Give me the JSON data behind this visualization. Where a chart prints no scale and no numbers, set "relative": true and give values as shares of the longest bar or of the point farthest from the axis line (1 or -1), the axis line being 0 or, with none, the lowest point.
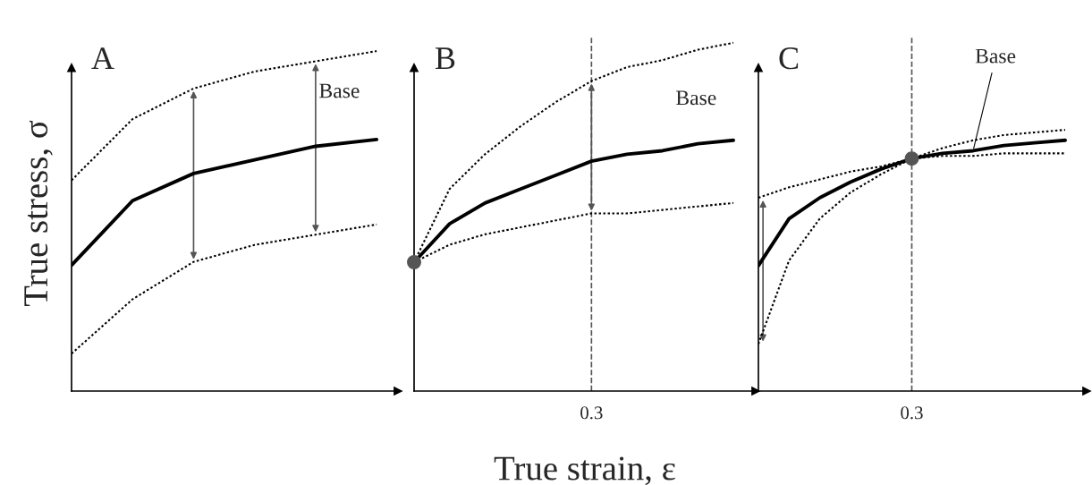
{
  "chart_data": [
    {
      "type": "line",
      "title": "A",
      "ylabel": "True stress, σ",
      "relative": true,
      "categories": [
        null,
        null,
        null,
        null,
        null,
        null
      ],
      "legend": false,
      "grid": false,
      "series": [
        {
          "name": "Base",
          "color": "#000000",
          "line_style": "solid",
          "values": [
            0.37,
            0.56,
            0.64,
            0.68,
            0.72,
            0.74
          ]
        },
        {
          "color": "#000000",
          "line_style": "dotted",
          "values": [
            0.62,
            0.8,
            0.89,
            0.94,
            0.97,
            1.0
          ]
        },
        {
          "color": "#000000",
          "line_style": "dotted",
          "values": [
            0.11,
            0.27,
            0.38,
            0.43,
            0.46,
            0.49
          ]
        }
      ]
    },
    {
      "type": "line",
      "title": "B",
      "xlabel": "True strain, ε",
      "relative": true,
      "categories": [
        null,
        null,
        null,
        null,
        null,
        null,
        null,
        null,
        null,
        null
      ],
      "legend": false,
      "grid": false,
      "annotations": [
        "0.3"
      ],
      "series": [
        {
          "name": "Base",
          "color": "#000000",
          "line_style": "solid",
          "values": [
            0.37,
            0.48,
            0.54,
            0.58,
            0.62,
            0.66,
            0.68,
            0.69,
            0.71,
            0.72
          ]
        },
        {
          "color": "#000000",
          "line_style": "dotted",
          "values": [
            0.37,
            0.58,
            0.68,
            0.76,
            0.83,
            0.89,
            0.93,
            0.95,
            0.98,
            1.0
          ]
        },
        {
          "color": "#000000",
          "line_style": "dotted",
          "values": [
            0.37,
            0.42,
            0.45,
            0.47,
            0.49,
            0.51,
            0.51,
            0.52,
            0.53,
            0.54
          ]
        }
      ]
    },
    {
      "type": "line",
      "title": "C",
      "relative": true,
      "categories": [
        null,
        null,
        null,
        null,
        null,
        null,
        null,
        null,
        null,
        null,
        null
      ],
      "legend": false,
      "grid": false,
      "annotations": [
        "0.3"
      ],
      "series": [
        {
          "name": "Base",
          "color": "#000000",
          "line_style": "solid",
          "values": [
            0.48,
            0.66,
            0.74,
            0.8,
            0.85,
            0.89,
            0.91,
            0.92,
            0.94,
            0.95,
            0.96
          ]
        },
        {
          "color": "#000000",
          "line_style": "dotted",
          "values": [
            0.74,
            0.78,
            0.81,
            0.84,
            0.86,
            0.89,
            0.9,
            0.9,
            0.91,
            0.91,
            0.91
          ]
        },
        {
          "color": "#000000",
          "line_style": "dotted",
          "values": [
            0.18,
            0.5,
            0.66,
            0.76,
            0.83,
            0.89,
            0.93,
            0.96,
            0.98,
            0.99,
            1.0
          ]
        }
      ]
    }
  ]
}
